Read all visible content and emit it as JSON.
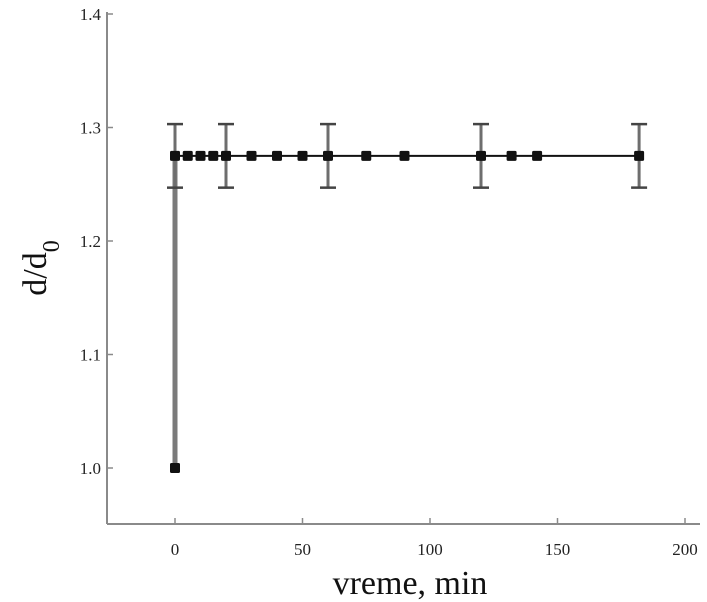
{
  "chart_data": {
    "type": "scatter",
    "title": "",
    "xlabel": "vreme, min",
    "ylabel_main": "d/d",
    "ylabel_sub": "0",
    "xlim": [
      -25,
      200
    ],
    "ylim": [
      0.95,
      1.4
    ],
    "xticks": [
      0,
      50,
      100,
      150,
      200
    ],
    "xtick_labels": [
      "0",
      "50",
      "100",
      "150",
      "200"
    ],
    "yticks": [
      1.0,
      1.1,
      1.2,
      1.3,
      1.4
    ],
    "ytick_labels": [
      "1.0",
      "1.1",
      "1.2",
      "1.3",
      "1.4"
    ],
    "grid": false,
    "series": [
      {
        "x": [
          0,
          0,
          5,
          10,
          15,
          20,
          30,
          40,
          50,
          60,
          75,
          90,
          120,
          132,
          142,
          182
        ],
        "y": [
          1.0,
          1.275,
          1.275,
          1.275,
          1.275,
          1.275,
          1.275,
          1.275,
          1.275,
          1.275,
          1.275,
          1.275,
          1.275,
          1.275,
          1.275,
          1.275
        ],
        "error": [
          0,
          0.028,
          0,
          0,
          0,
          0.028,
          0,
          0,
          0,
          0.028,
          0,
          0,
          0.028,
          0,
          0,
          0.028
        ]
      }
    ],
    "vertical_connector": {
      "x": 0,
      "y_from": 1.0,
      "y_to": 1.275
    },
    "horizontal_line": {
      "x_from": 0,
      "x_to": 182,
      "y": 1.275
    }
  }
}
